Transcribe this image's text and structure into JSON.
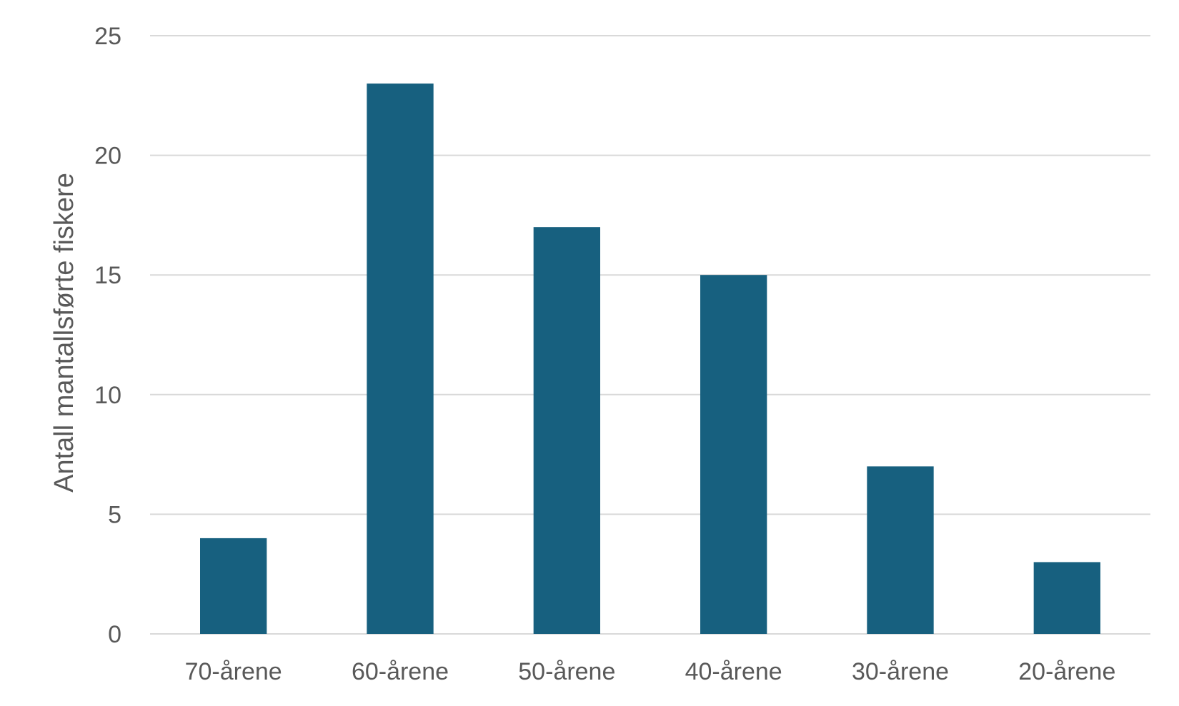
{
  "chart_data": {
    "type": "bar",
    "title": "",
    "xlabel": "",
    "ylabel": "Antall mantallsførte fiskere",
    "categories": [
      "70-årene",
      "60-årene",
      "50-årene",
      "40-årene",
      "30-årene",
      "20-årene"
    ],
    "values": [
      4,
      23,
      17,
      15,
      7,
      3
    ],
    "ylim": [
      0,
      25
    ],
    "yticks": [
      0,
      5,
      10,
      15,
      20,
      25
    ],
    "grid": true,
    "legend": "none",
    "colors": {
      "bar": "#17607f",
      "grid": "#d9d9d9",
      "text": "#595959"
    }
  }
}
